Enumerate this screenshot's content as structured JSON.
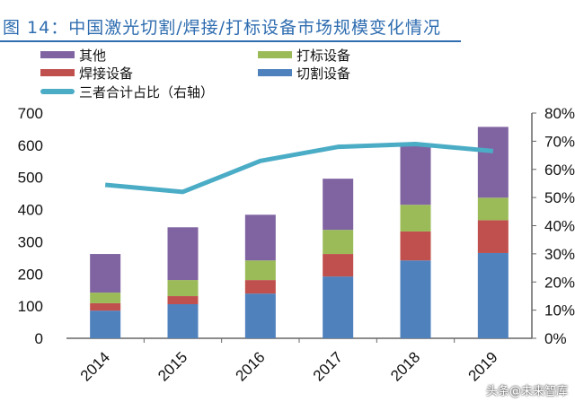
{
  "title": "图 14：中国激光切割/焊接/打标设备市场规模变化情况",
  "watermark": "头条@未来智库",
  "chart_data": {
    "type": "bar",
    "stacked": true,
    "categories": [
      "2014",
      "2015",
      "2016",
      "2017",
      "2018",
      "2019"
    ],
    "series": [
      {
        "name": "切割设备",
        "color": "#4f81bd",
        "values": [
          86,
          106,
          139,
          192,
          242,
          265
        ]
      },
      {
        "name": "焊接设备",
        "color": "#c0504d",
        "values": [
          23,
          25,
          42,
          70,
          90,
          102
        ]
      },
      {
        "name": "打标设备",
        "color": "#9bbb59",
        "values": [
          33,
          50,
          61,
          75,
          83,
          70
        ]
      },
      {
        "name": "其他",
        "color": "#8064a2",
        "values": [
          120,
          164,
          142,
          159,
          189,
          220
        ]
      }
    ],
    "line_series": {
      "name": "三者合计占比（右轴）",
      "color": "#4bacc6",
      "axis": "right",
      "values": [
        54.5,
        52,
        63,
        68,
        69,
        66.5
      ]
    },
    "ylim": [
      0,
      700
    ],
    "y_ticks": [
      "0",
      "100",
      "200",
      "300",
      "400",
      "500",
      "600",
      "700"
    ],
    "y2lim": [
      0,
      80
    ],
    "y2_ticks": [
      "0%",
      "10%",
      "20%",
      "30%",
      "40%",
      "50%",
      "60%",
      "70%",
      "80%"
    ],
    "legend_position": "top",
    "grid": false
  }
}
